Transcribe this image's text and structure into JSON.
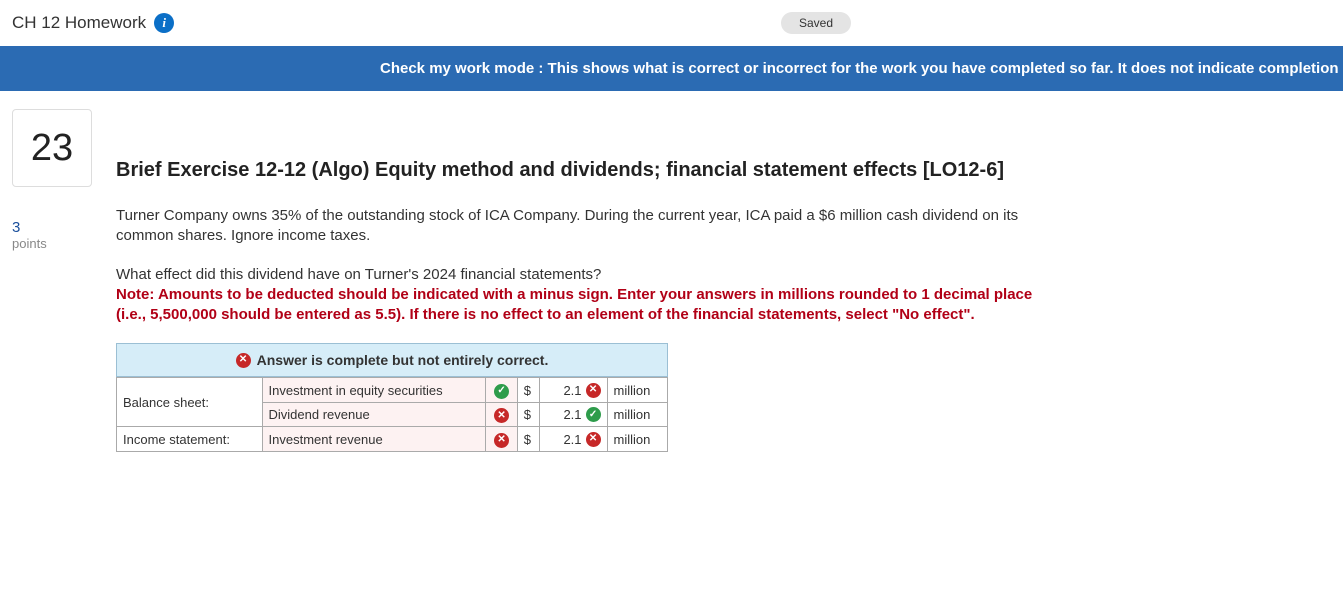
{
  "header": {
    "title": "CH 12 Homework",
    "info_glyph": "i",
    "saved_label": "Saved"
  },
  "banner": {
    "text": "Check my work mode : This shows what is correct or incorrect for the work you have completed so far. It does not indicate completion"
  },
  "question": {
    "number": "23",
    "points_value": "3",
    "points_label": "points",
    "title": "Brief Exercise 12-12 (Algo) Equity method and dividends; financial statement effects [LO12-6]",
    "paragraph1": "Turner Company owns 35% of the outstanding stock of ICA Company. During the current year, ICA paid a $6 million cash dividend on its common shares. Ignore income taxes.",
    "paragraph2_plain": "What effect did this dividend have on Turner's 2024 financial statements?",
    "note_red": "Note: Amounts to be deducted should be indicated with a minus sign. Enter your answers in millions rounded to 1 decimal place (i.e., 5,500,000 should be entered as 5.5). If there is no effect to an element of the financial statements, select \"No effect\"."
  },
  "answer_box": {
    "status_text": "Answer is complete but not entirely correct.",
    "status_icon": "x",
    "sections": {
      "balance_sheet_label": "Balance sheet:",
      "income_statement_label": "Income statement:"
    },
    "rows": [
      {
        "account": "Investment in equity securities",
        "account_mark": "check",
        "currency": "$",
        "value": "2.1",
        "value_mark": "x",
        "unit": "million"
      },
      {
        "account": "Dividend revenue",
        "account_mark": "x",
        "currency": "$",
        "value": "2.1",
        "value_mark": "check",
        "unit": "million"
      },
      {
        "account": "Investment revenue",
        "account_mark": "x",
        "currency": "$",
        "value": "2.1",
        "value_mark": "x",
        "unit": "million"
      }
    ]
  },
  "glyphs": {
    "check": "✓",
    "x": "✕"
  },
  "colors": {
    "banner_bg": "#2b6bb3",
    "note_red": "#b10016",
    "header_bg": "#d6edf8",
    "pink_bg": "#fdf2f2",
    "check_bg": "#2e9c4b",
    "x_bg": "#c62828"
  }
}
